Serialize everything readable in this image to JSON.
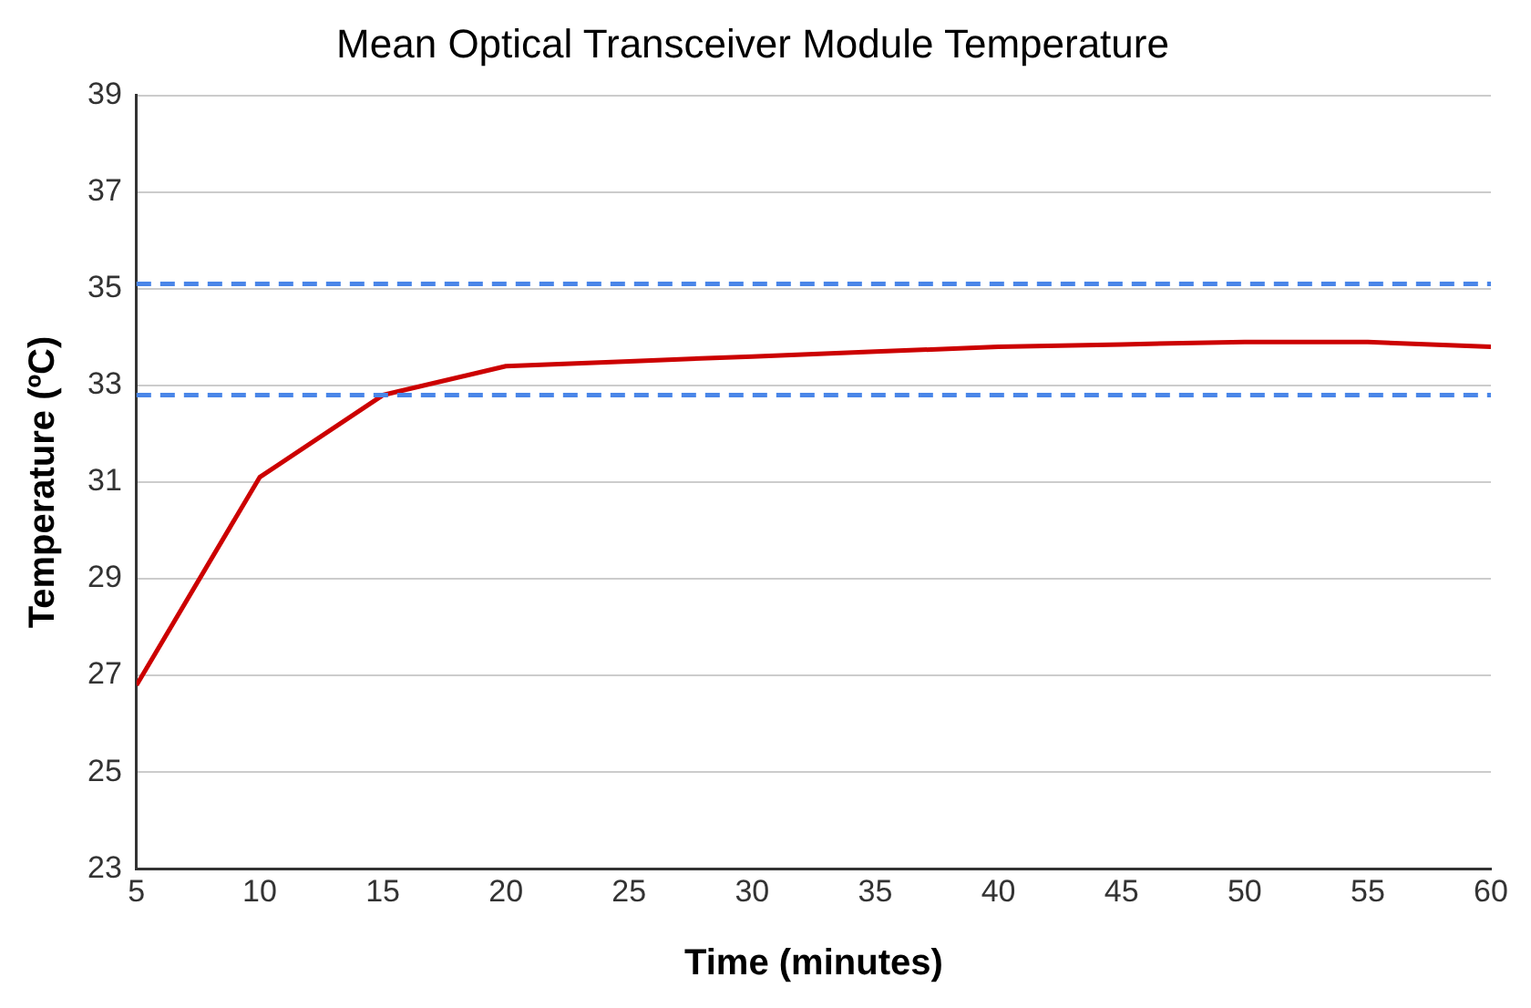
{
  "chart_data": {
    "type": "line",
    "title": "Mean Optical Transceiver Module Temperature",
    "xlabel": "Time (minutes)",
    "ylabel": "Temperature (ºC)",
    "x": [
      5,
      10,
      15,
      20,
      25,
      30,
      35,
      40,
      45,
      50,
      55,
      60
    ],
    "series": [
      {
        "color": "#cc0000",
        "values": [
          26.8,
          31.1,
          32.8,
          33.4,
          33.5,
          33.6,
          33.7,
          33.8,
          33.85,
          33.9,
          33.9,
          33.8
        ]
      }
    ],
    "xlim": [
      5,
      60
    ],
    "xticks": [
      5,
      10,
      15,
      20,
      25,
      30,
      35,
      40,
      45,
      50,
      55,
      60
    ],
    "ylim": [
      23,
      39
    ],
    "yticks": [
      23,
      25,
      27,
      29,
      31,
      33,
      35,
      37,
      39
    ],
    "ref_lines": [
      {
        "axis": "y",
        "value": 35.1,
        "color": "#4a86e8",
        "line_style": "dashed"
      },
      {
        "axis": "y",
        "value": 32.8,
        "color": "#4a86e8",
        "line_style": "dashed"
      }
    ],
    "grid": "y",
    "legend": false,
    "marker": "none",
    "line_style": "solid"
  }
}
